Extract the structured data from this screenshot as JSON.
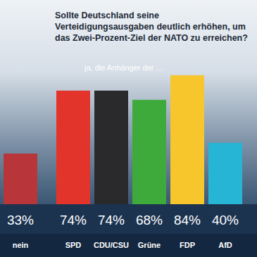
{
  "chart_data": {
    "type": "bar",
    "title": "Sollte Deutschland seine Verteidigungsausgaben deutlich erhöhen, um das Zwei-Prozent-Ziel der NATO zu erreichen?",
    "annotations": [
      "ja, die Anhänger der ..."
    ],
    "categories": [
      "nein",
      "SPD",
      "CDU/CSU",
      "Grüne",
      "FDP",
      "AfD"
    ],
    "values": [
      33,
      74,
      74,
      68,
      84,
      40
    ],
    "value_labels": [
      "33%",
      "74%",
      "74%",
      "68%",
      "84%",
      "40%"
    ],
    "colors": [
      "#b8363a",
      "#e3342b",
      "#2a2a2c",
      "#3faa3c",
      "#f7c62c",
      "#27b5d6"
    ],
    "ylim": [
      0,
      100
    ],
    "yticks": [],
    "grid": false,
    "tick_labels": "x",
    "data_labels": true
  }
}
